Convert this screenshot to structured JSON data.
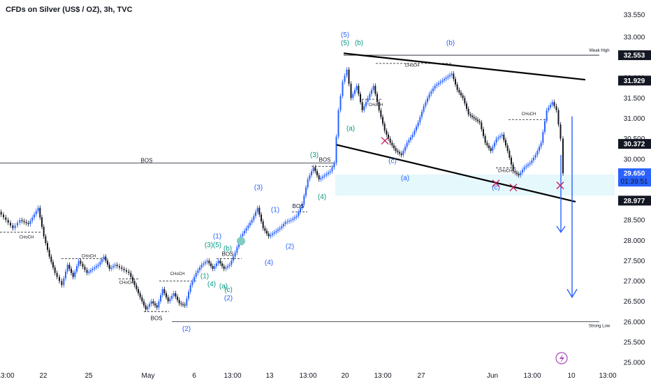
{
  "chart_data": {
    "type": "candlestick",
    "title": "CFDs on Silver (US$ / OZ), 3h, TVC",
    "ylim": [
      24.9,
      33.6
    ],
    "y_ticks": [
      "33.550",
      "33.000",
      "32.500",
      "32.000",
      "31.500",
      "31.000",
      "30.500",
      "30.000",
      "29.500",
      "29.000",
      "28.500",
      "28.000",
      "27.500",
      "27.000",
      "26.500",
      "26.000",
      "25.500",
      "25.000"
    ],
    "x_ticks": [
      "13:00",
      "22",
      "25",
      "May",
      "6",
      "13:00",
      "13",
      "13:00",
      "20",
      "13:00",
      "27",
      "Jun",
      "13:00",
      "10",
      "13:00"
    ],
    "price_labels": [
      {
        "value": 32.553,
        "text": "32.553",
        "style": "dark"
      },
      {
        "value": 31.929,
        "text": "31.929",
        "style": "dark"
      },
      {
        "value": 30.372,
        "text": "30.372",
        "style": "dark"
      },
      {
        "value": 29.65,
        "text": "29.650",
        "sub": "01:39:51",
        "style": "blue"
      },
      {
        "value": 28.977,
        "text": "28.977",
        "style": "dark"
      }
    ],
    "levels": [
      {
        "name": "Weak High",
        "value": 32.553
      },
      {
        "name": "BOS",
        "value": 29.9
      },
      {
        "name": "Strong Low",
        "value": 26.0
      }
    ],
    "zone": {
      "from": 29.1,
      "to": 29.62
    },
    "price_path": [
      [
        0,
        28.7
      ],
      [
        10,
        28.5
      ],
      [
        20,
        28.3
      ],
      [
        30,
        28.5
      ],
      [
        42,
        28.4
      ],
      [
        56,
        28.8
      ],
      [
        64,
        28.1
      ],
      [
        72,
        27.6
      ],
      [
        80,
        27.2
      ],
      [
        90,
        26.9
      ],
      [
        98,
        27.4
      ],
      [
        106,
        27.1
      ],
      [
        114,
        27.5
      ],
      [
        126,
        27.2
      ],
      [
        134,
        27.3
      ],
      [
        142,
        27.4
      ],
      [
        150,
        27.6
      ],
      [
        158,
        27.3
      ],
      [
        166,
        27.4
      ],
      [
        176,
        27.3
      ],
      [
        186,
        27.2
      ],
      [
        194,
        26.9
      ],
      [
        202,
        26.6
      ],
      [
        210,
        26.3
      ],
      [
        218,
        26.5
      ],
      [
        226,
        26.35
      ],
      [
        234,
        26.8
      ],
      [
        242,
        26.5
      ],
      [
        250,
        26.7
      ],
      [
        258,
        26.45
      ],
      [
        266,
        26.4
      ],
      [
        274,
        26.9
      ],
      [
        282,
        27.2
      ],
      [
        290,
        27.4
      ],
      [
        298,
        27.5
      ],
      [
        306,
        27.3
      ],
      [
        314,
        27.5
      ],
      [
        322,
        27.3
      ],
      [
        330,
        27.4
      ],
      [
        338,
        27.7
      ],
      [
        346,
        28.1
      ],
      [
        354,
        28.3
      ],
      [
        362,
        28.5
      ],
      [
        370,
        28.8
      ],
      [
        378,
        28.3
      ],
      [
        386,
        28.1
      ],
      [
        394,
        28.2
      ],
      [
        402,
        28.3
      ],
      [
        410,
        28.45
      ],
      [
        418,
        28.5
      ],
      [
        426,
        28.6
      ],
      [
        434,
        28.9
      ],
      [
        442,
        29.5
      ],
      [
        450,
        29.8
      ],
      [
        458,
        29.5
      ],
      [
        466,
        29.6
      ],
      [
        474,
        29.7
      ],
      [
        480,
        29.9
      ],
      [
        486,
        31.2
      ],
      [
        492,
        31.9
      ],
      [
        498,
        32.2
      ],
      [
        504,
        31.5
      ],
      [
        512,
        31.8
      ],
      [
        520,
        31.2
      ],
      [
        528,
        31.5
      ],
      [
        536,
        31.8
      ],
      [
        544,
        31.2
      ],
      [
        552,
        30.7
      ],
      [
        560,
        30.4
      ],
      [
        568,
        30.2
      ],
      [
        576,
        30.1
      ],
      [
        584,
        30.4
      ],
      [
        592,
        30.6
      ],
      [
        600,
        30.9
      ],
      [
        608,
        31.3
      ],
      [
        616,
        31.6
      ],
      [
        624,
        31.8
      ],
      [
        632,
        31.9
      ],
      [
        640,
        32.0
      ],
      [
        648,
        32.1
      ],
      [
        656,
        31.7
      ],
      [
        664,
        31.5
      ],
      [
        672,
        31.1
      ],
      [
        680,
        31.0
      ],
      [
        688,
        30.9
      ],
      [
        696,
        30.4
      ],
      [
        704,
        30.2
      ],
      [
        712,
        30.5
      ],
      [
        720,
        30.6
      ],
      [
        728,
        30.2
      ],
      [
        736,
        29.7
      ],
      [
        744,
        29.6
      ],
      [
        752,
        29.8
      ],
      [
        760,
        29.9
      ],
      [
        768,
        30.1
      ],
      [
        776,
        30.4
      ],
      [
        784,
        31.2
      ],
      [
        792,
        31.4
      ],
      [
        798,
        31.2
      ],
      [
        804,
        30.5
      ],
      [
        808,
        29.65
      ]
    ],
    "elliott_labels": [
      {
        "text": "(5)",
        "x": 494,
        "y": 33.0,
        "color": "blue"
      },
      {
        "text": "(5)",
        "x": 494,
        "y": 32.8,
        "color": "teal"
      },
      {
        "text": "(b)",
        "x": 514,
        "y": 32.8,
        "color": "teal"
      },
      {
        "text": "(b)",
        "x": 645,
        "y": 32.8,
        "color": "blue"
      },
      {
        "text": "(a)",
        "x": 502,
        "y": 30.7,
        "color": "teal"
      },
      {
        "text": "(c)",
        "x": 562,
        "y": 29.9,
        "color": "blue"
      },
      {
        "text": "(a)",
        "x": 580,
        "y": 29.48,
        "color": "blue"
      },
      {
        "text": "(c)",
        "x": 710,
        "y": 29.25,
        "color": "blue"
      },
      {
        "text": "(3)",
        "x": 450,
        "y": 30.05,
        "color": "teal"
      },
      {
        "text": "(4)",
        "x": 461,
        "y": 29.02,
        "color": "teal"
      },
      {
        "text": "(3)",
        "x": 370,
        "y": 29.25,
        "color": "blue"
      },
      {
        "text": "(1)",
        "x": 394,
        "y": 28.7,
        "color": "blue"
      },
      {
        "text": "(2)",
        "x": 415,
        "y": 27.8,
        "color": "blue"
      },
      {
        "text": "(4)",
        "x": 385,
        "y": 27.4,
        "color": "blue"
      },
      {
        "text": "(1)",
        "x": 311,
        "y": 28.05,
        "color": "blue"
      },
      {
        "text": "(3)",
        "x": 299,
        "y": 27.83,
        "color": "teal"
      },
      {
        "text": "(5)",
        "x": 311,
        "y": 27.83,
        "color": "teal"
      },
      {
        "text": "(b)",
        "x": 326,
        "y": 27.75,
        "color": "teal"
      },
      {
        "text": "(1)",
        "x": 293,
        "y": 27.07,
        "color": "teal"
      },
      {
        "text": "(4)",
        "x": 303,
        "y": 26.87,
        "color": "teal"
      },
      {
        "text": "(a)",
        "x": 320,
        "y": 26.82,
        "color": "teal"
      },
      {
        "text": "(c)",
        "x": 327,
        "y": 26.73,
        "color": "teal"
      },
      {
        "text": "(2)",
        "x": 327,
        "y": 26.53,
        "color": "blue"
      },
      {
        "text": "(2)",
        "x": 267,
        "y": 25.77,
        "color": "blue"
      }
    ],
    "structure_labels": [
      {
        "text": "BOS",
        "x": 210,
        "y": 29.92
      },
      {
        "text": "BOS",
        "x": 465,
        "y": 29.94
      },
      {
        "text": "BOS",
        "x": 427,
        "y": 28.79
      },
      {
        "text": "BOS",
        "x": 326,
        "y": 27.62
      },
      {
        "text": "BOS",
        "x": 224,
        "y": 26.04
      },
      {
        "text": "CHoCH",
        "x": 38,
        "y": 28.05
      },
      {
        "text": "CHoCH",
        "x": 127,
        "y": 27.58
      },
      {
        "text": "CHoCH",
        "x": 181,
        "y": 26.93
      },
      {
        "text": "CHoCH",
        "x": 254,
        "y": 27.15
      },
      {
        "text": "CHoCH",
        "x": 538,
        "y": 31.3
      },
      {
        "text": "CHoCH",
        "x": 590,
        "y": 32.27
      },
      {
        "text": "CHoCH",
        "x": 757,
        "y": 31.08
      },
      {
        "text": "CHoCH",
        "x": 723,
        "y": 29.68
      },
      {
        "text": "Weak High",
        "x": 858,
        "y": 32.64
      },
      {
        "text": "Strong Low",
        "x": 858,
        "y": 25.87
      }
    ]
  }
}
